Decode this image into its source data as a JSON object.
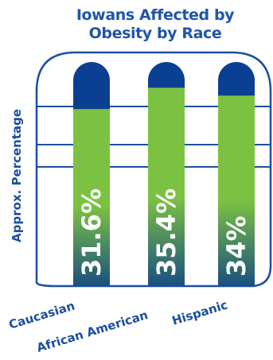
{
  "chart_data": {
    "type": "bar",
    "title_lines": [
      "Iowans Affected by",
      "Obesity by Race"
    ],
    "ylabel": "Approx. Percentage",
    "xlabel": "",
    "categories": [
      "Caucasian",
      "African American",
      "Hispanic"
    ],
    "values": [
      31.6,
      35.4,
      34
    ],
    "value_labels": [
      "31.6%",
      "35.4%",
      "34%"
    ],
    "ylim": [
      0,
      40
    ],
    "grid": true,
    "legend": "none",
    "colors": {
      "frame": "#1a4fa0",
      "column_empty": "#0b3f91",
      "fill_top": "#7cc242",
      "fill_bottom": "#1a4f80",
      "title": "#1e55a8",
      "value_text": "#ffffff"
    }
  }
}
